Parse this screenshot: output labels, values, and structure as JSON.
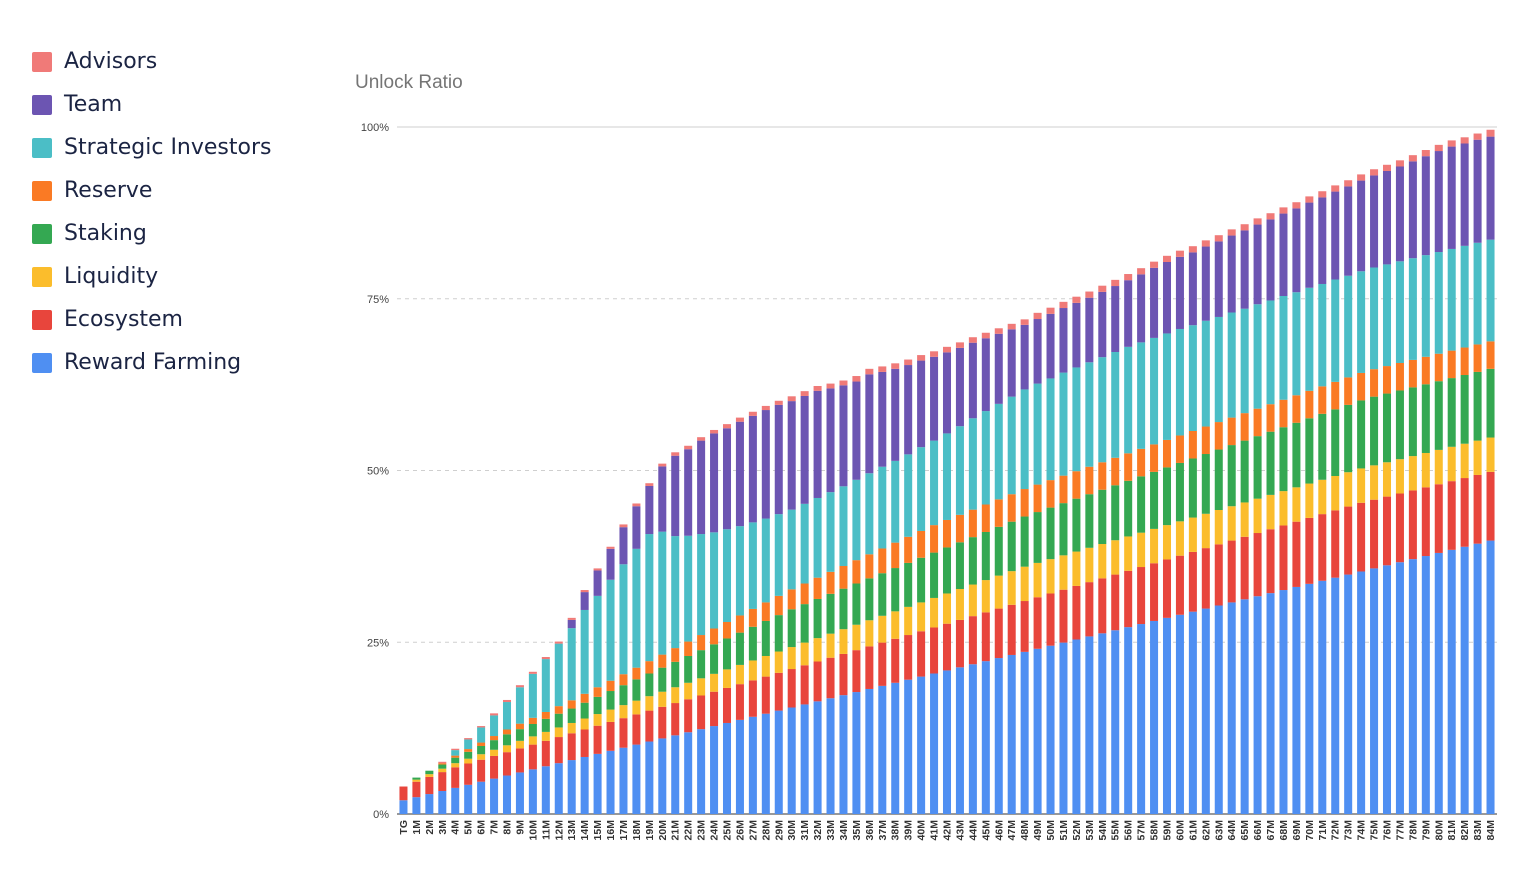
{
  "chart_data": {
    "type": "bar",
    "stacked": true,
    "title": "Unlock Ratio",
    "xlabel": "",
    "ylabel": "",
    "ylim": [
      0,
      100
    ],
    "y_ticks": [
      "0%",
      "25%",
      "50%",
      "75%",
      "100%"
    ],
    "grid": true,
    "legend_position": "left",
    "categories": [
      "TG",
      "1M",
      "2M",
      "3M",
      "4M",
      "5M",
      "6M",
      "7M",
      "8M",
      "9M",
      "10M",
      "11M",
      "12M",
      "13M",
      "14M",
      "15M",
      "16M",
      "17M",
      "18M",
      "19M",
      "20M",
      "21M",
      "22M",
      "23M",
      "24M",
      "25M",
      "26M",
      "27M",
      "28M",
      "29M",
      "30M",
      "31M",
      "32M",
      "33M",
      "34M",
      "35M",
      "36M",
      "37M",
      "38M",
      "39M",
      "40M",
      "41M",
      "42M",
      "43M",
      "44M",
      "45M",
      "46M",
      "47M",
      "48M",
      "49M",
      "50M",
      "51M",
      "52M",
      "53M",
      "54M",
      "55M",
      "56M",
      "57M",
      "58M",
      "59M",
      "60M",
      "61M",
      "62M",
      "63M",
      "64M",
      "65M",
      "66M",
      "67M",
      "68M",
      "69M",
      "70M",
      "71M",
      "72M",
      "73M",
      "74M",
      "75M",
      "76M",
      "77M",
      "78M",
      "79M",
      "80M",
      "81M",
      "82M",
      "83M",
      "84M"
    ],
    "series": [
      {
        "name": "Reward Farming",
        "color": "#4f8ff2",
        "values": [
          2.0,
          2.45,
          2.9,
          3.35,
          3.8,
          4.25,
          4.7,
          5.15,
          5.6,
          6.05,
          6.5,
          6.95,
          7.4,
          7.85,
          8.3,
          8.75,
          9.2,
          9.65,
          10.1,
          10.55,
          11.0,
          11.45,
          11.9,
          12.35,
          12.8,
          13.25,
          13.7,
          14.15,
          14.6,
          15.05,
          15.5,
          15.95,
          16.4,
          16.85,
          17.3,
          17.75,
          18.2,
          18.65,
          19.1,
          19.55,
          20.0,
          20.45,
          20.9,
          21.35,
          21.8,
          22.25,
          22.7,
          23.15,
          23.6,
          24.05,
          24.5,
          24.95,
          25.4,
          25.85,
          26.3,
          26.75,
          27.2,
          27.65,
          28.1,
          28.55,
          29.0,
          29.45,
          29.9,
          30.35,
          30.8,
          31.25,
          31.7,
          32.15,
          32.6,
          33.05,
          33.5,
          33.95,
          34.4,
          34.85,
          35.3,
          35.75,
          36.2,
          36.65,
          37.1,
          37.55,
          38.0,
          38.45,
          38.9,
          39.35,
          39.8
        ]
      },
      {
        "name": "Ecosystem",
        "color": "#e8453c",
        "values": [
          2.0,
          2.25,
          2.5,
          2.75,
          3.0,
          3.1,
          3.2,
          3.3,
          3.4,
          3.5,
          3.6,
          3.7,
          3.8,
          3.9,
          4.0,
          4.1,
          4.2,
          4.3,
          4.4,
          4.5,
          4.6,
          4.7,
          4.8,
          4.9,
          5.0,
          5.1,
          5.2,
          5.3,
          5.4,
          5.5,
          5.6,
          5.7,
          5.8,
          5.9,
          6.0,
          6.1,
          6.2,
          6.3,
          6.4,
          6.5,
          6.6,
          6.7,
          6.8,
          6.9,
          7.0,
          7.1,
          7.2,
          7.3,
          7.4,
          7.5,
          7.6,
          7.7,
          7.8,
          7.9,
          8.0,
          8.1,
          8.2,
          8.3,
          8.4,
          8.5,
          8.6,
          8.7,
          8.8,
          8.9,
          9.0,
          9.1,
          9.2,
          9.3,
          9.4,
          9.5,
          9.6,
          9.7,
          9.8,
          9.9,
          10.0,
          10.0,
          10.0,
          10.0,
          10.0,
          10.0,
          10.0,
          10.0,
          10.0,
          10.0,
          10.0
        ]
      },
      {
        "name": "Liquidity",
        "color": "#fbbd2c",
        "values": [
          0.0,
          0.3,
          0.4,
          0.5,
          0.6,
          0.7,
          0.8,
          0.9,
          1.0,
          1.1,
          1.2,
          1.3,
          1.4,
          1.5,
          1.6,
          1.7,
          1.8,
          1.9,
          2.0,
          2.1,
          2.2,
          2.3,
          2.4,
          2.5,
          2.6,
          2.7,
          2.8,
          2.9,
          3.0,
          3.1,
          3.2,
          3.3,
          3.4,
          3.5,
          3.6,
          3.7,
          3.8,
          3.9,
          4.0,
          4.1,
          4.2,
          4.3,
          4.4,
          4.5,
          4.6,
          4.7,
          4.8,
          4.9,
          5.0,
          5.0,
          5.0,
          5.0,
          5.0,
          5.0,
          5.0,
          5.0,
          5.0,
          5.0,
          5.0,
          5.0,
          5.0,
          5.0,
          5.0,
          5.0,
          5.0,
          5.0,
          5.0,
          5.0,
          5.0,
          5.0,
          5.0,
          5.0,
          5.0,
          5.0,
          5.0,
          5.0,
          5.0,
          5.0,
          5.0,
          5.0,
          5.0,
          5.0,
          5.0,
          5.0,
          5.0
        ]
      },
      {
        "name": "Staking",
        "color": "#34a852",
        "values": [
          0.0,
          0.3,
          0.5,
          0.6,
          0.8,
          1.0,
          1.2,
          1.4,
          1.6,
          1.7,
          1.8,
          1.9,
          2.0,
          2.1,
          2.3,
          2.5,
          2.7,
          2.9,
          3.1,
          3.3,
          3.5,
          3.7,
          3.9,
          4.1,
          4.3,
          4.5,
          4.7,
          4.9,
          5.1,
          5.3,
          5.5,
          5.6,
          5.7,
          5.8,
          5.9,
          6.0,
          6.1,
          6.2,
          6.3,
          6.4,
          6.5,
          6.6,
          6.7,
          6.8,
          6.9,
          7.0,
          7.1,
          7.2,
          7.3,
          7.4,
          7.5,
          7.6,
          7.7,
          7.8,
          7.9,
          8.0,
          8.1,
          8.2,
          8.3,
          8.4,
          8.5,
          8.6,
          8.7,
          8.8,
          8.9,
          9.0,
          9.1,
          9.2,
          9.3,
          9.4,
          9.5,
          9.6,
          9.7,
          9.8,
          9.9,
          10.0,
          10.0,
          10.0,
          10.0,
          10.0,
          10.0,
          10.0,
          10.0,
          10.0,
          10.0
        ]
      },
      {
        "name": "Reserve",
        "color": "#fa7a24",
        "values": [
          0.0,
          0.0,
          0.0,
          0.2,
          0.3,
          0.4,
          0.5,
          0.6,
          0.7,
          0.8,
          0.9,
          1.0,
          1.1,
          1.2,
          1.3,
          1.4,
          1.5,
          1.6,
          1.7,
          1.8,
          1.9,
          2.0,
          2.1,
          2.2,
          2.3,
          2.4,
          2.5,
          2.6,
          2.7,
          2.8,
          2.9,
          3.0,
          3.1,
          3.2,
          3.3,
          3.4,
          3.5,
          3.6,
          3.7,
          3.8,
          3.9,
          4.0,
          4.0,
          4.0,
          4.0,
          4.0,
          4.0,
          4.0,
          4.0,
          4.0,
          4.0,
          4.0,
          4.0,
          4.0,
          4.0,
          4.0,
          4.0,
          4.0,
          4.0,
          4.0,
          4.0,
          4.0,
          4.0,
          4.0,
          4.0,
          4.0,
          4.0,
          4.0,
          4.0,
          4.0,
          4.0,
          4.0,
          4.0,
          4.0,
          4.0,
          4.0,
          4.0,
          4.0,
          4.0,
          4.0,
          4.0,
          4.0,
          4.0,
          4.0,
          4.0
        ]
      },
      {
        "name": "Strategic Investors",
        "color": "#4bbec6",
        "values": [
          0.0,
          0.0,
          0.0,
          0.0,
          0.8,
          1.4,
          2.2,
          3.0,
          4.0,
          5.3,
          6.4,
          7.7,
          9.1,
          10.5,
          12.2,
          13.3,
          14.7,
          16.0,
          17.3,
          18.5,
          17.9,
          16.3,
          15.4,
          14.7,
          14.0,
          13.5,
          13.0,
          12.6,
          12.2,
          11.9,
          11.6,
          11.6,
          11.6,
          11.6,
          11.6,
          11.7,
          11.8,
          11.9,
          11.9,
          12.0,
          12.2,
          12.3,
          12.6,
          12.9,
          13.3,
          13.6,
          13.9,
          14.2,
          14.5,
          14.7,
          14.8,
          15.0,
          15.1,
          15.2,
          15.3,
          15.4,
          15.5,
          15.5,
          15.5,
          15.5,
          15.5,
          15.4,
          15.4,
          15.3,
          15.3,
          15.2,
          15.2,
          15.1,
          15.1,
          15.0,
          15.0,
          14.9,
          14.9,
          14.8,
          14.8,
          14.8,
          14.8,
          14.8,
          14.8,
          14.8,
          14.8,
          14.8,
          14.8,
          14.8,
          14.8
        ]
      },
      {
        "name": "Team",
        "color": "#6c55b2",
        "values": [
          0.0,
          0.0,
          0.0,
          0.0,
          0.0,
          0.0,
          0.0,
          0.0,
          0.0,
          0.0,
          0.0,
          0.0,
          0.0,
          1.2,
          2.6,
          3.7,
          4.5,
          5.4,
          6.2,
          7.0,
          9.5,
          11.7,
          12.6,
          13.6,
          14.4,
          14.7,
          15.2,
          15.5,
          15.8,
          15.9,
          15.8,
          15.7,
          15.6,
          15.1,
          14.7,
          14.3,
          14.4,
          13.8,
          13.4,
          13.0,
          12.6,
          12.2,
          11.8,
          11.4,
          11.0,
          10.6,
          10.2,
          9.8,
          9.4,
          9.4,
          9.4,
          9.4,
          9.4,
          9.4,
          9.5,
          9.6,
          9.7,
          9.9,
          10.2,
          10.4,
          10.5,
          10.6,
          10.8,
          11.0,
          11.2,
          11.4,
          11.6,
          11.8,
          12.0,
          12.2,
          12.4,
          12.6,
          12.8,
          13.0,
          13.2,
          13.4,
          13.6,
          13.8,
          14.1,
          14.4,
          14.7,
          14.9,
          14.9,
          15.0,
          15.0
        ]
      },
      {
        "name": "Advisors",
        "color": "#f07a78",
        "values": [
          0.0,
          0.0,
          0.0,
          0.2,
          0.2,
          0.2,
          0.2,
          0.3,
          0.3,
          0.3,
          0.3,
          0.3,
          0.3,
          0.3,
          0.3,
          0.3,
          0.3,
          0.4,
          0.4,
          0.4,
          0.4,
          0.5,
          0.5,
          0.5,
          0.5,
          0.6,
          0.6,
          0.6,
          0.6,
          0.6,
          0.7,
          0.7,
          0.7,
          0.7,
          0.7,
          0.8,
          0.8,
          0.8,
          0.8,
          0.8,
          0.8,
          0.8,
          0.8,
          0.8,
          0.8,
          0.8,
          0.8,
          0.8,
          0.8,
          0.9,
          0.9,
          0.9,
          0.9,
          0.9,
          0.9,
          0.9,
          0.9,
          0.9,
          0.9,
          0.9,
          0.9,
          0.9,
          0.9,
          0.9,
          0.9,
          0.9,
          0.9,
          0.9,
          0.9,
          0.9,
          0.9,
          0.9,
          0.9,
          0.9,
          0.9,
          0.9,
          0.9,
          0.9,
          0.9,
          0.9,
          0.9,
          0.9,
          0.9,
          0.9,
          1.0
        ]
      }
    ]
  },
  "legend": {
    "items": [
      {
        "label": "Advisors",
        "color": "#f07a78"
      },
      {
        "label": "Team",
        "color": "#6c55b2"
      },
      {
        "label": "Strategic Investors",
        "color": "#4bbec6"
      },
      {
        "label": "Reserve",
        "color": "#fa7a24"
      },
      {
        "label": "Staking",
        "color": "#34a852"
      },
      {
        "label": "Liquidity",
        "color": "#fbbd2c"
      },
      {
        "label": "Ecosystem",
        "color": "#e8453c"
      },
      {
        "label": "Reward Farming",
        "color": "#4f8ff2"
      }
    ]
  }
}
